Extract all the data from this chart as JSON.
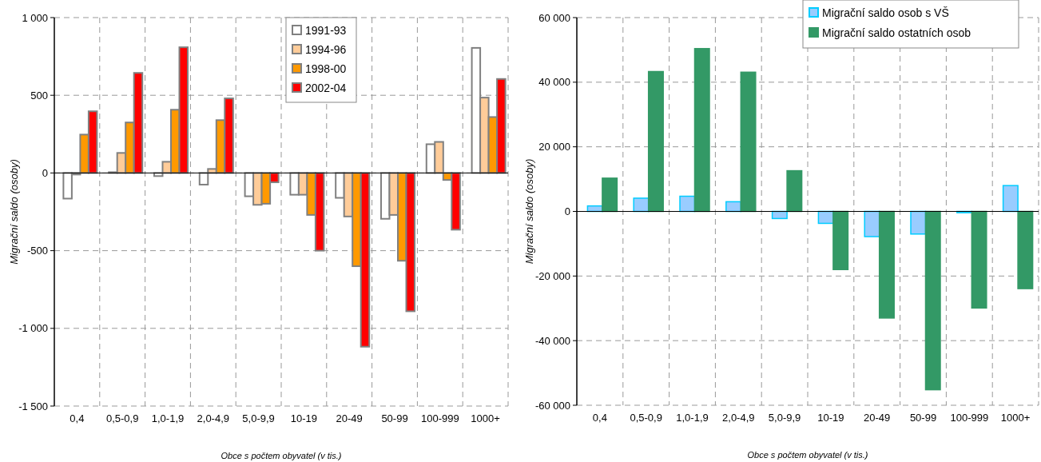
{
  "chart_data": [
    {
      "type": "bar",
      "xlabel": "Obce s počtem obyvatel (v tis.)",
      "ylabel": "Migrační saldo (osoby)",
      "categories": [
        "0,4",
        "0,5-0,9",
        "1,0-1,9",
        "2,0-4,9",
        "5,0-9,9",
        "10-19",
        "20-49",
        "50-99",
        "100-999",
        "1000+"
      ],
      "series": [
        {
          "name": "1991-93",
          "color": "#ffffff",
          "values": [
            -165,
            5,
            -20,
            -75,
            -150,
            -140,
            -160,
            -295,
            185,
            805
          ]
        },
        {
          "name": "1994-96",
          "color": "#ffcc99",
          "values": [
            -10,
            129,
            72,
            26,
            -205,
            -140,
            -280,
            -270,
            200,
            485
          ]
        },
        {
          "name": "1998-00",
          "color": "#ff9900",
          "values": [
            247,
            325,
            407,
            340,
            -198,
            -270,
            -600,
            -565,
            -45,
            360
          ]
        },
        {
          "name": "2002-04",
          "color": "#ff0000",
          "values": [
            397,
            644,
            809,
            480,
            -60,
            -500,
            -1118,
            -890,
            -365,
            605
          ]
        }
      ],
      "ylim": [
        -1500,
        1000
      ],
      "yticks": [
        {
          "value": -1500,
          "label": "-1 500"
        },
        {
          "value": -1000,
          "label": "-1 000"
        },
        -500,
        0,
        500,
        {
          "value": 1000,
          "label": "1 000"
        }
      ],
      "grid": true,
      "legend": "top"
    },
    {
      "type": "bar",
      "xlabel": "Obce s počtem obyvatel (v tis.)",
      "ylabel": "Migrační saldo (osoby)",
      "categories": [
        "0,4",
        "0,5-0,9",
        "1,0-1,9",
        "2,0-4,9",
        "5,0-9,9",
        "10-19",
        "20-49",
        "50-99",
        "100-999",
        "1000+"
      ],
      "series": [
        {
          "name": "Migrační saldo osob s VŠ",
          "color": "#99ccff",
          "values": [
            1700,
            4100,
            4700,
            3000,
            -2200,
            -3700,
            -7800,
            -7000,
            -400,
            8000
          ]
        },
        {
          "name": "Migrační saldo ostatních osob",
          "color": "#339966",
          "values": [
            10300,
            43300,
            50400,
            43100,
            12600,
            -18000,
            -33000,
            -55200,
            -29900,
            -23900
          ]
        }
      ],
      "ylim": [
        -60000,
        60000
      ],
      "yticks": [
        {
          "value": -60000,
          "label": "-60 000"
        },
        {
          "value": -40000,
          "label": "-40 000"
        },
        {
          "value": -20000,
          "label": "-20 000"
        },
        0,
        {
          "value": 20000,
          "label": "20 000"
        },
        {
          "value": 40000,
          "label": "40 000"
        },
        {
          "value": 60000,
          "label": "60 000"
        }
      ],
      "grid": true,
      "legend": "top right"
    }
  ]
}
